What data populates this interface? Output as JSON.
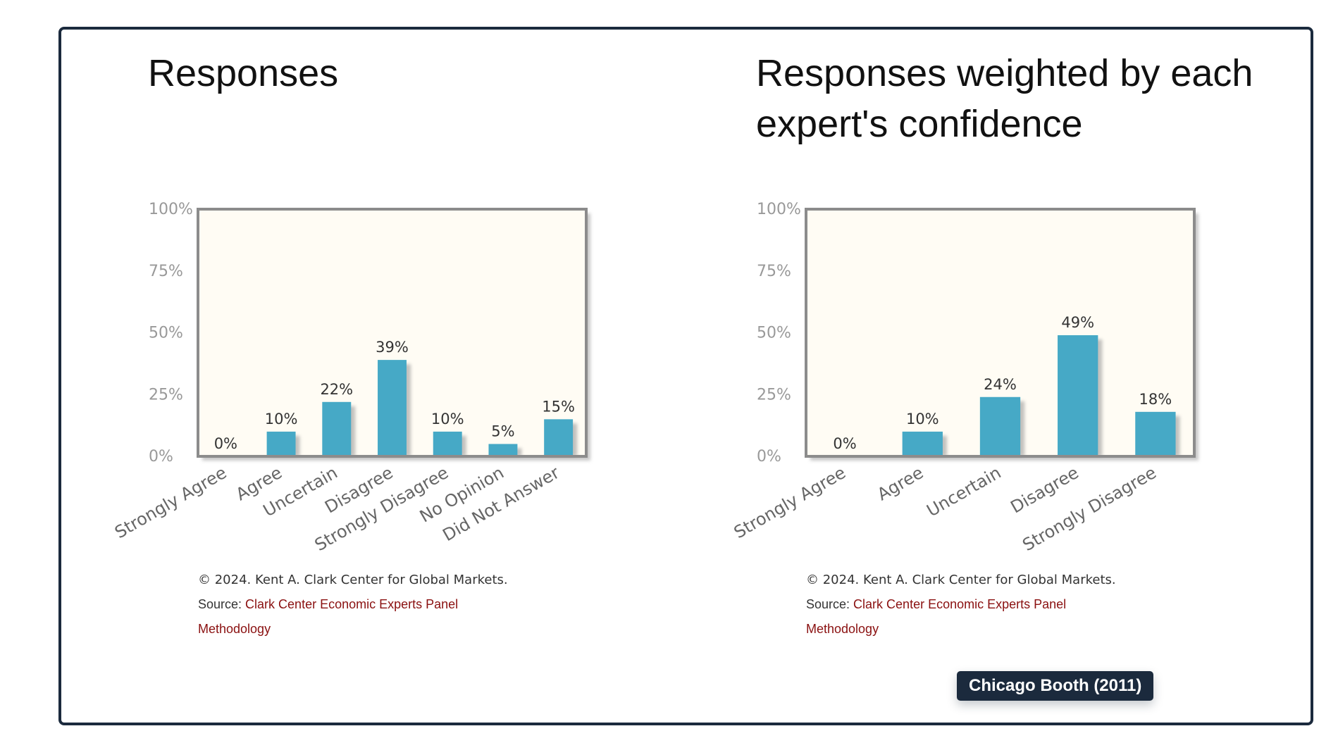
{
  "badge": "Chicago Booth (2011)",
  "footer": {
    "copyright": "© 2024. Kent A. Clark Center for Global Markets.",
    "source_label": "Source: ",
    "source_link": "Clark Center Economic Experts Panel",
    "methodology_link": "Methodology"
  },
  "colors": {
    "bar": "#46a9c6",
    "plot_background": "#fffcf4",
    "frame": "#1b2a3d",
    "link": "#8a1010"
  },
  "chart_data": [
    {
      "type": "bar",
      "title": "Responses",
      "categories": [
        "Strongly Agree",
        "Agree",
        "Uncertain",
        "Disagree",
        "Strongly Disagree",
        "No Opinion",
        "Did Not Answer"
      ],
      "values": [
        0,
        10,
        22,
        39,
        10,
        5,
        15
      ],
      "data_labels": [
        "0%",
        "10%",
        "22%",
        "39%",
        "10%",
        "5%",
        "15%"
      ],
      "ylim": [
        0,
        100
      ],
      "yticks": [
        0,
        25,
        50,
        75,
        100
      ],
      "ytick_labels": [
        "0%",
        "25%",
        "50%",
        "75%",
        "100%"
      ],
      "xlabel": "",
      "ylabel": "",
      "grid": false,
      "legend": "none"
    },
    {
      "type": "bar",
      "title": "Responses weighted by each expert's confidence",
      "categories": [
        "Strongly Agree",
        "Agree",
        "Uncertain",
        "Disagree",
        "Strongly Disagree"
      ],
      "values": [
        0,
        10,
        24,
        49,
        18
      ],
      "data_labels": [
        "0%",
        "10%",
        "24%",
        "49%",
        "18%"
      ],
      "ylim": [
        0,
        100
      ],
      "yticks": [
        0,
        25,
        50,
        75,
        100
      ],
      "ytick_labels": [
        "0%",
        "25%",
        "50%",
        "75%",
        "100%"
      ],
      "xlabel": "",
      "ylabel": "",
      "grid": false,
      "legend": "none"
    }
  ]
}
